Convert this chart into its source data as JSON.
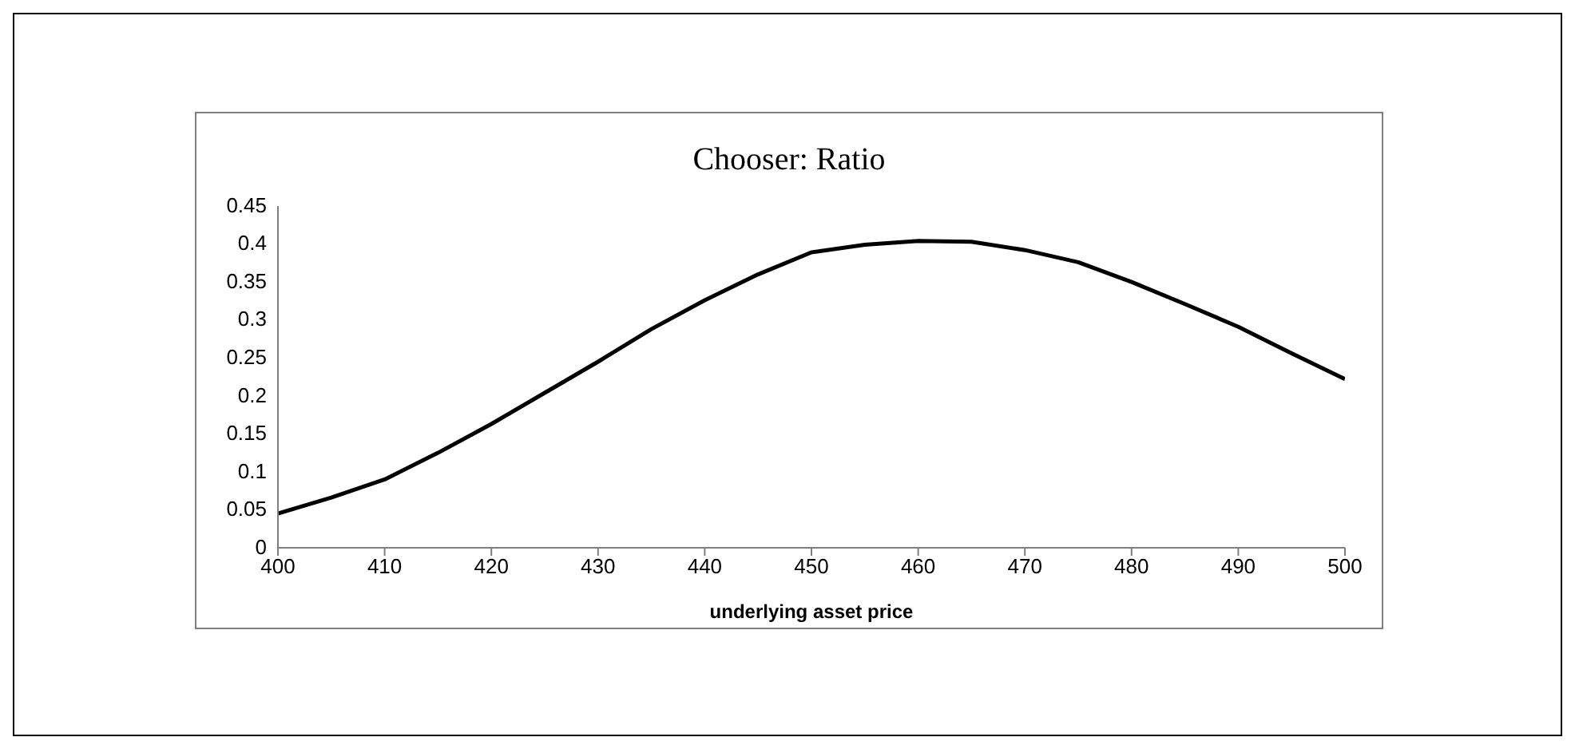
{
  "chart_data": {
    "type": "line",
    "title": "Chooser: Ratio",
    "xlabel": "underlying asset price",
    "x": [
      400,
      405,
      410,
      415,
      420,
      425,
      430,
      435,
      440,
      445,
      450,
      455,
      460,
      465,
      470,
      475,
      480,
      485,
      490,
      495,
      500
    ],
    "series": [
      {
        "color": "#000000",
        "values": [
          0.045,
          0.066,
          0.09,
          0.125,
          0.163,
          0.204,
          0.245,
          0.288,
          0.326,
          0.36,
          0.389,
          0.399,
          0.404,
          0.403,
          0.392,
          0.376,
          0.35,
          0.321,
          0.291,
          0.256,
          0.222
        ]
      }
    ],
    "xlim": [
      400,
      500
    ],
    "xticks": [
      400,
      410,
      420,
      430,
      440,
      450,
      460,
      470,
      480,
      490,
      500
    ],
    "ylim": [
      0,
      0.45
    ],
    "yticks": [
      0,
      0.05,
      0.1,
      0.15,
      0.2,
      0.25,
      0.3,
      0.35,
      0.4,
      0.45
    ],
    "grid": false,
    "legend": false,
    "marker": "none",
    "line_style": "solid"
  }
}
